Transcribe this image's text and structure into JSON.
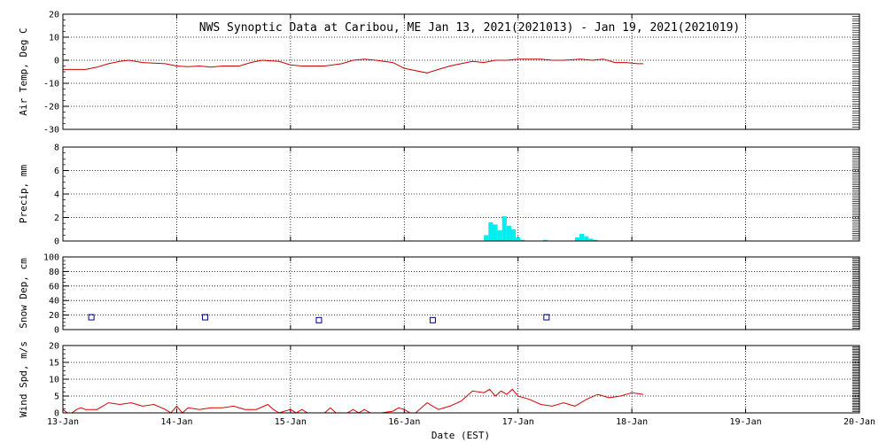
{
  "title": "NWS Synoptic Data at Caribou, ME   Jan 13, 2021(2021013) - Jan 19, 2021(2021019)",
  "xlabel": "Date (EST)",
  "x_tick_labels": [
    "13-Jan",
    "14-Jan",
    "15-Jan",
    "16-Jan",
    "17-Jan",
    "18-Jan",
    "19-Jan",
    "20-Jan"
  ],
  "colors": {
    "temp": "#cc0000",
    "precip": "#00eeee",
    "snow": "#000080",
    "wind": "#dd0000",
    "grid": "#000000"
  },
  "chart_data": [
    {
      "type": "line",
      "name": "air-temp",
      "ylabel": "Air Temp, Deg C",
      "ylim": [
        -30,
        20
      ],
      "yticks": [
        -30,
        -20,
        -10,
        0,
        10,
        20
      ],
      "xlim": [
        0,
        7
      ],
      "grid": true,
      "x": [
        0.0,
        0.1,
        0.2,
        0.3,
        0.4,
        0.5,
        0.58,
        0.7,
        0.9,
        1.0,
        1.1,
        1.2,
        1.3,
        1.4,
        1.55,
        1.65,
        1.75,
        1.9,
        2.0,
        2.1,
        2.2,
        2.3,
        2.45,
        2.55,
        2.65,
        2.75,
        2.9,
        3.0,
        3.1,
        3.2,
        3.3,
        3.4,
        3.5,
        3.6,
        3.7,
        3.8,
        3.9,
        4.0,
        4.1,
        4.2,
        4.3,
        4.4,
        4.55,
        4.65,
        4.75,
        4.85,
        4.95,
        5.05,
        5.1
      ],
      "y": [
        -4,
        -4,
        -4,
        -3,
        -1.5,
        -0.5,
        0,
        -1,
        -1.5,
        -2.5,
        -2.8,
        -2.5,
        -3,
        -2.5,
        -2.5,
        -1,
        0,
        -0.5,
        -2,
        -2.5,
        -2.5,
        -2.5,
        -1.5,
        0,
        0.5,
        0,
        -1,
        -3.5,
        -4.5,
        -5.5,
        -4,
        -2.5,
        -1.5,
        -0.5,
        -1,
        0,
        0,
        0.5,
        0.5,
        0.5,
        0,
        0,
        0.5,
        0,
        0.5,
        -1,
        -1,
        -1.5,
        -1.5
      ]
    },
    {
      "type": "bar",
      "name": "precip",
      "ylabel": "Precip, mm",
      "ylim": [
        0,
        8
      ],
      "yticks": [
        0,
        2,
        4,
        6,
        8
      ],
      "xlim": [
        0,
        7
      ],
      "grid": true,
      "x": [
        3.7,
        3.74,
        3.78,
        3.82,
        3.86,
        3.9,
        3.94,
        3.98,
        4.02,
        4.22,
        4.5,
        4.54,
        4.58,
        4.62,
        4.66
      ],
      "values": [
        0.5,
        1.6,
        1.4,
        0.9,
        2.1,
        1.3,
        1.0,
        0.3,
        0.1,
        0.1,
        0.3,
        0.6,
        0.4,
        0.2,
        0.1
      ]
    },
    {
      "type": "scatter",
      "name": "snow-depth",
      "ylabel": "Snow Dep, cm",
      "ylim": [
        0,
        100
      ],
      "yticks": [
        0,
        20,
        40,
        60,
        80,
        100
      ],
      "xlim": [
        0,
        7
      ],
      "grid": true,
      "x": [
        0.25,
        1.25,
        2.25,
        3.25,
        4.25
      ],
      "y": [
        17,
        17,
        13,
        13,
        17
      ]
    },
    {
      "type": "line",
      "name": "wind-speed",
      "ylabel": "Wind Spd, m/s",
      "ylim": [
        0,
        20
      ],
      "yticks": [
        0,
        5,
        10,
        15,
        20
      ],
      "xlim": [
        0,
        7
      ],
      "grid": true,
      "x": [
        0.0,
        0.04,
        0.08,
        0.12,
        0.16,
        0.2,
        0.3,
        0.4,
        0.5,
        0.6,
        0.7,
        0.8,
        0.9,
        0.95,
        1.0,
        1.05,
        1.1,
        1.2,
        1.3,
        1.4,
        1.5,
        1.6,
        1.7,
        1.8,
        1.85,
        1.9,
        2.0,
        2.05,
        2.1,
        2.15,
        2.2,
        2.3,
        2.35,
        2.4,
        2.5,
        2.55,
        2.6,
        2.65,
        2.7,
        2.8,
        2.9,
        2.95,
        3.0,
        3.05,
        3.1,
        3.2,
        3.3,
        3.4,
        3.5,
        3.6,
        3.7,
        3.75,
        3.8,
        3.85,
        3.9,
        3.95,
        4.0,
        4.1,
        4.2,
        4.3,
        4.4,
        4.5,
        4.6,
        4.7,
        4.8,
        4.9,
        5.0,
        5.1
      ],
      "y": [
        1,
        0,
        0,
        1,
        1.5,
        1,
        1,
        3,
        2.5,
        3,
        2,
        2.5,
        1,
        0,
        2,
        0,
        1.5,
        1,
        1.5,
        1.5,
        2,
        1,
        1,
        2.5,
        1,
        0,
        1,
        0,
        1,
        0,
        0,
        0,
        1.5,
        0,
        0,
        1,
        0,
        1,
        0,
        0,
        0.5,
        1.5,
        1,
        0,
        0,
        3,
        1,
        2,
        3.5,
        6.5,
        6,
        7,
        5,
        6.5,
        5.5,
        7,
        5,
        4,
        2.5,
        2,
        3,
        2,
        4,
        5.5,
        4.5,
        5,
        6,
        5.5
      ]
    }
  ]
}
